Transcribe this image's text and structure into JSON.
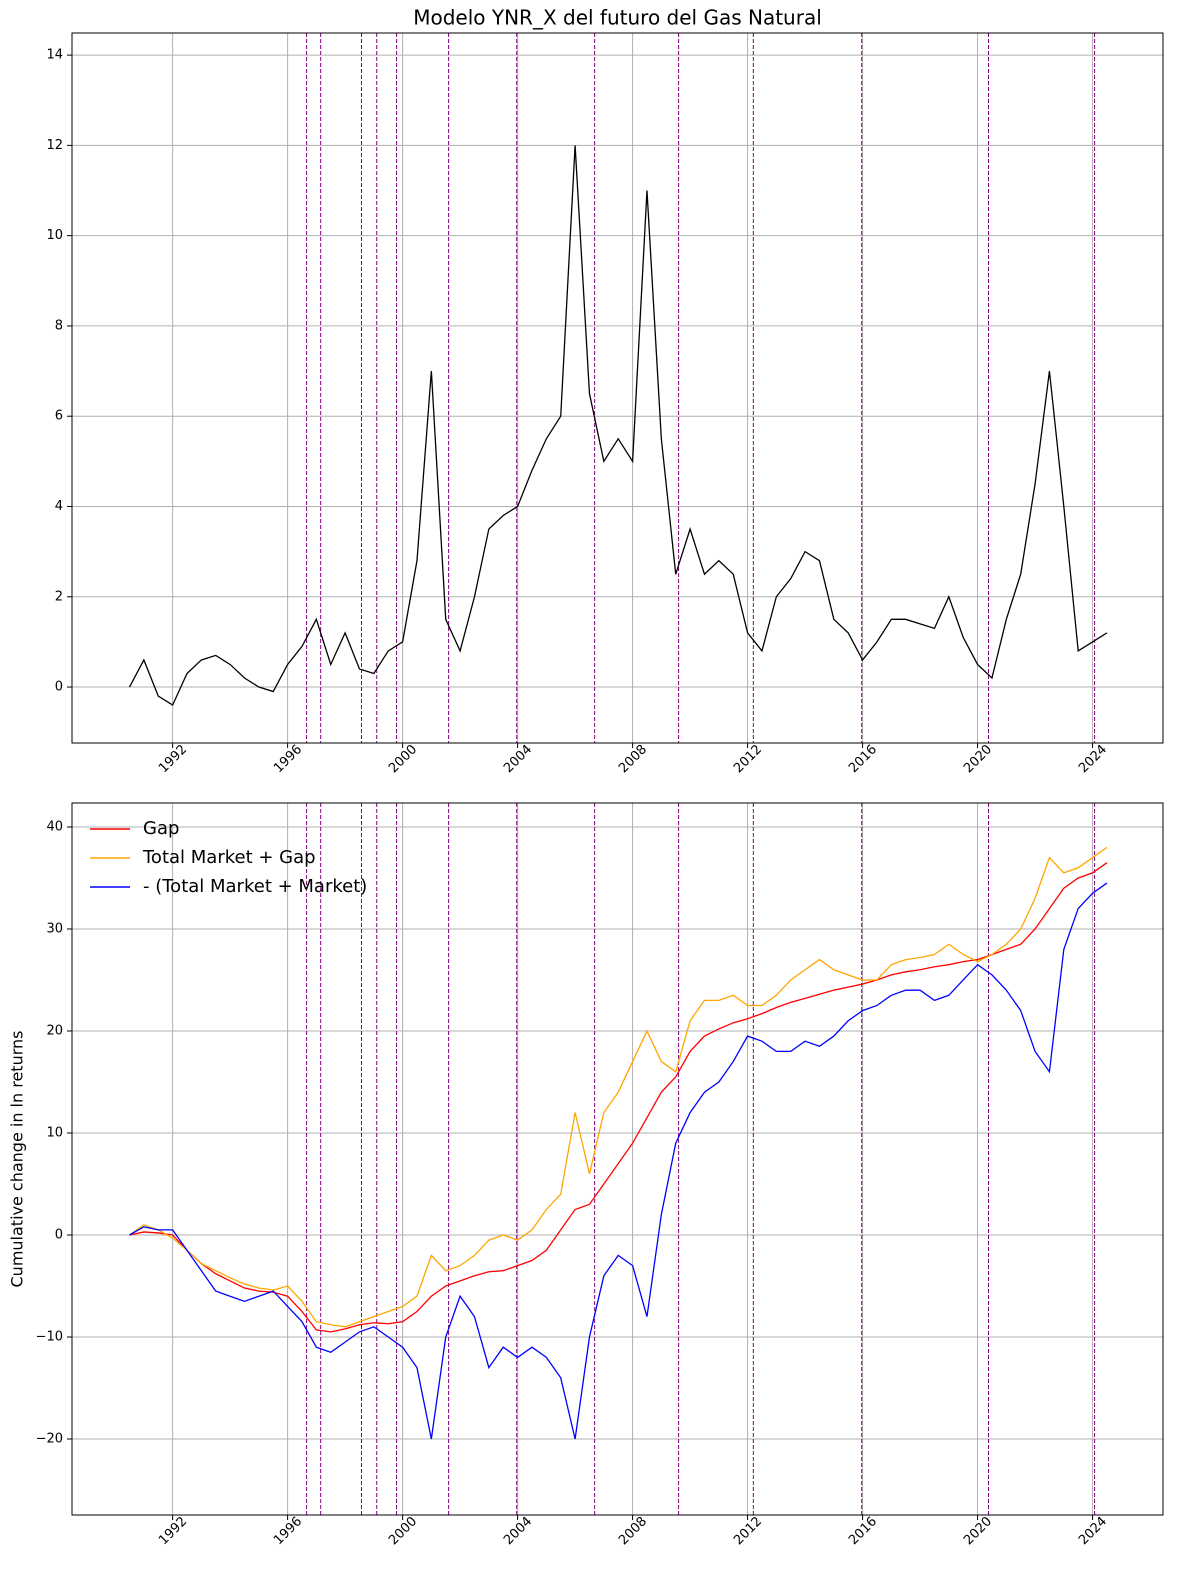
{
  "chart_data": [
    {
      "type": "line",
      "title": "Modelo YNR_X del futuro del Gas Natural",
      "x": [
        1990.5,
        1991,
        1991.5,
        1992,
        1992.5,
        1993,
        1993.5,
        1994,
        1994.5,
        1995,
        1995.5,
        1996,
        1996.5,
        1997,
        1997.5,
        1998,
        1998.5,
        1999,
        1999.5,
        2000,
        2000.5,
        2001,
        2001.5,
        2002,
        2002.5,
        2003,
        2003.5,
        2004,
        2004.5,
        2005,
        2005.5,
        2006,
        2006.5,
        2007,
        2007.5,
        2008,
        2008.5,
        2009,
        2009.5,
        2010,
        2010.5,
        2011,
        2011.5,
        2012,
        2012.5,
        2013,
        2013.5,
        2014,
        2014.5,
        2015,
        2015.5,
        2016,
        2016.5,
        2017,
        2017.5,
        2018,
        2018.5,
        2019,
        2019.5,
        2020,
        2020.5,
        2021,
        2021.5,
        2022,
        2022.5,
        2023,
        2023.5,
        2024,
        2024.5
      ],
      "series": [
        {
          "color": "#000000",
          "values": [
            0.0,
            0.6,
            -0.2,
            -0.4,
            0.3,
            0.6,
            0.7,
            0.5,
            0.2,
            0.0,
            -0.1,
            0.5,
            0.9,
            1.5,
            0.5,
            1.2,
            0.4,
            0.3,
            0.8,
            1.0,
            2.8,
            7.0,
            1.5,
            0.8,
            2.0,
            3.5,
            3.8,
            4.0,
            4.8,
            5.5,
            6.0,
            12.0,
            6.5,
            5.0,
            5.5,
            5.0,
            11.0,
            5.5,
            2.5,
            3.5,
            2.5,
            2.8,
            2.5,
            1.2,
            0.8,
            2.0,
            2.4,
            3.0,
            2.8,
            1.5,
            1.2,
            0.6,
            1.0,
            1.5,
            1.5,
            1.4,
            1.3,
            2.0,
            1.1,
            0.5,
            0.2,
            1.5,
            2.5,
            4.5,
            7.0,
            4.0,
            0.8,
            1.0,
            1.2
          ]
        }
      ],
      "xlim": [
        1988.5,
        2026.45
      ],
      "xticks": [
        1992,
        1996,
        2000,
        2004,
        2008,
        2012,
        2016,
        2020,
        2024
      ],
      "ylim": [
        -1.24,
        14.49
      ],
      "yticks": [
        0,
        2,
        4,
        6,
        8,
        10,
        12,
        14
      ],
      "grid": true,
      "vlines": {
        "color": "#800080",
        "values": [
          1996.66,
          1997.15,
          1998.57,
          1999.1,
          1999.79,
          2001.6,
          2003.97,
          2006.68,
          2009.6,
          2012.2,
          2015.97,
          2020.38,
          2024.07
        ]
      }
    },
    {
      "type": "line",
      "ylabel": "Cumulative change in ln returns",
      "x": [
        1990.5,
        1991,
        1991.5,
        1992,
        1992.5,
        1993,
        1993.5,
        1994,
        1994.5,
        1995,
        1995.5,
        1996,
        1996.5,
        1997,
        1997.5,
        1998,
        1998.5,
        1999,
        1999.5,
        2000,
        2000.5,
        2001,
        2001.5,
        2002,
        2002.5,
        2003,
        2003.5,
        2004,
        2004.5,
        2005,
        2005.5,
        2006,
        2006.5,
        2007,
        2007.5,
        2008,
        2008.5,
        2009,
        2009.5,
        2010,
        2010.5,
        2011,
        2011.5,
        2012,
        2012.5,
        2013,
        2013.5,
        2014,
        2014.5,
        2015,
        2015.5,
        2016,
        2016.5,
        2017,
        2017.5,
        2018,
        2018.5,
        2019,
        2019.5,
        2020,
        2020.5,
        2021,
        2021.5,
        2022,
        2022.5,
        2023,
        2023.5,
        2024,
        2024.5
      ],
      "series": [
        {
          "name": "Gap",
          "color": "#ff0000",
          "values": [
            0,
            0.3,
            0.2,
            0,
            -1.5,
            -2.8,
            -3.8,
            -4.5,
            -5.2,
            -5.5,
            -5.6,
            -6.0,
            -7.5,
            -9.3,
            -9.5,
            -9.2,
            -8.8,
            -8.6,
            -8.7,
            -8.5,
            -7.5,
            -6.0,
            -5.0,
            -4.5,
            -4.0,
            -3.6,
            -3.5,
            -3.0,
            -2.5,
            -1.5,
            0.5,
            2.5,
            3.0,
            5.0,
            7.0,
            9.0,
            11.5,
            14.0,
            15.5,
            18.0,
            19.5,
            20.2,
            20.8,
            21.2,
            21.7,
            22.3,
            22.8,
            23.2,
            23.6,
            24.0,
            24.3,
            24.6,
            25.0,
            25.5,
            25.8,
            26.0,
            26.3,
            26.5,
            26.8,
            27.0,
            27.5,
            28.0,
            28.5,
            30.0,
            32.0,
            34.0,
            35.0,
            35.5,
            36.5
          ]
        },
        {
          "name": "Total Market + Gap",
          "color": "#ffa500",
          "values": [
            0,
            1.0,
            0.5,
            -0.3,
            -1.5,
            -2.8,
            -3.5,
            -4.2,
            -4.8,
            -5.2,
            -5.4,
            -5.0,
            -6.5,
            -8.5,
            -8.8,
            -9.0,
            -8.5,
            -8.0,
            -7.5,
            -7.0,
            -6.0,
            -2.0,
            -3.5,
            -3.0,
            -2.0,
            -0.5,
            0,
            -0.5,
            0.5,
            2.5,
            4.0,
            12.0,
            6.0,
            12.0,
            14.0,
            17.0,
            20.0,
            17.0,
            16.0,
            21.0,
            23.0,
            23.0,
            23.5,
            22.5,
            22.5,
            23.5,
            25.0,
            26.0,
            27.0,
            26.0,
            25.5,
            25.0,
            25.0,
            26.5,
            27.0,
            27.2,
            27.5,
            28.5,
            27.5,
            26.8,
            27.5,
            28.5,
            30.0,
            33.0,
            37.0,
            35.5,
            36.0,
            37.0,
            38.0
          ]
        },
        {
          "name": "- (Total Market + Market)",
          "color": "#0000ff",
          "values": [
            0,
            0.8,
            0.5,
            0.5,
            -1.5,
            -3.5,
            -5.5,
            -6.0,
            -6.5,
            -6.0,
            -5.5,
            -7.0,
            -8.5,
            -11.0,
            -11.5,
            -10.5,
            -9.5,
            -9.0,
            -10.0,
            -11.0,
            -13.0,
            -20.0,
            -10.0,
            -6.0,
            -8.0,
            -13.0,
            -11.0,
            -12.0,
            -11.0,
            -12.0,
            -14.0,
            -20.0,
            -10.0,
            -4.0,
            -2.0,
            -3.0,
            -8.0,
            2.0,
            9.0,
            12.0,
            14.0,
            15.0,
            17.0,
            19.5,
            19.0,
            18.0,
            18.0,
            19.0,
            18.5,
            19.5,
            21.0,
            22.0,
            22.5,
            23.5,
            24.0,
            24.0,
            23.0,
            23.5,
            25.0,
            26.5,
            25.5,
            24.0,
            22.0,
            18.0,
            16.0,
            28.0,
            32.0,
            33.5,
            34.5
          ]
        }
      ],
      "xlim": [
        1988.5,
        2026.45
      ],
      "xticks": [
        1992,
        1996,
        2000,
        2004,
        2008,
        2012,
        2016,
        2020,
        2024
      ],
      "ylim": [
        -27.45,
        42.35
      ],
      "yticks": [
        {
          "value": -20,
          "label": "−20"
        },
        {
          "value": -10,
          "label": "−10"
        },
        0,
        10,
        20,
        30,
        40
      ],
      "grid": true,
      "legend": "upper left",
      "vlines": {
        "color": "#800080",
        "values": [
          1996.66,
          1997.15,
          1998.57,
          1999.1,
          1999.79,
          2001.6,
          2003.97,
          2006.68,
          2009.6,
          2012.2,
          2015.97,
          2020.38,
          2024.07
        ]
      }
    }
  ]
}
